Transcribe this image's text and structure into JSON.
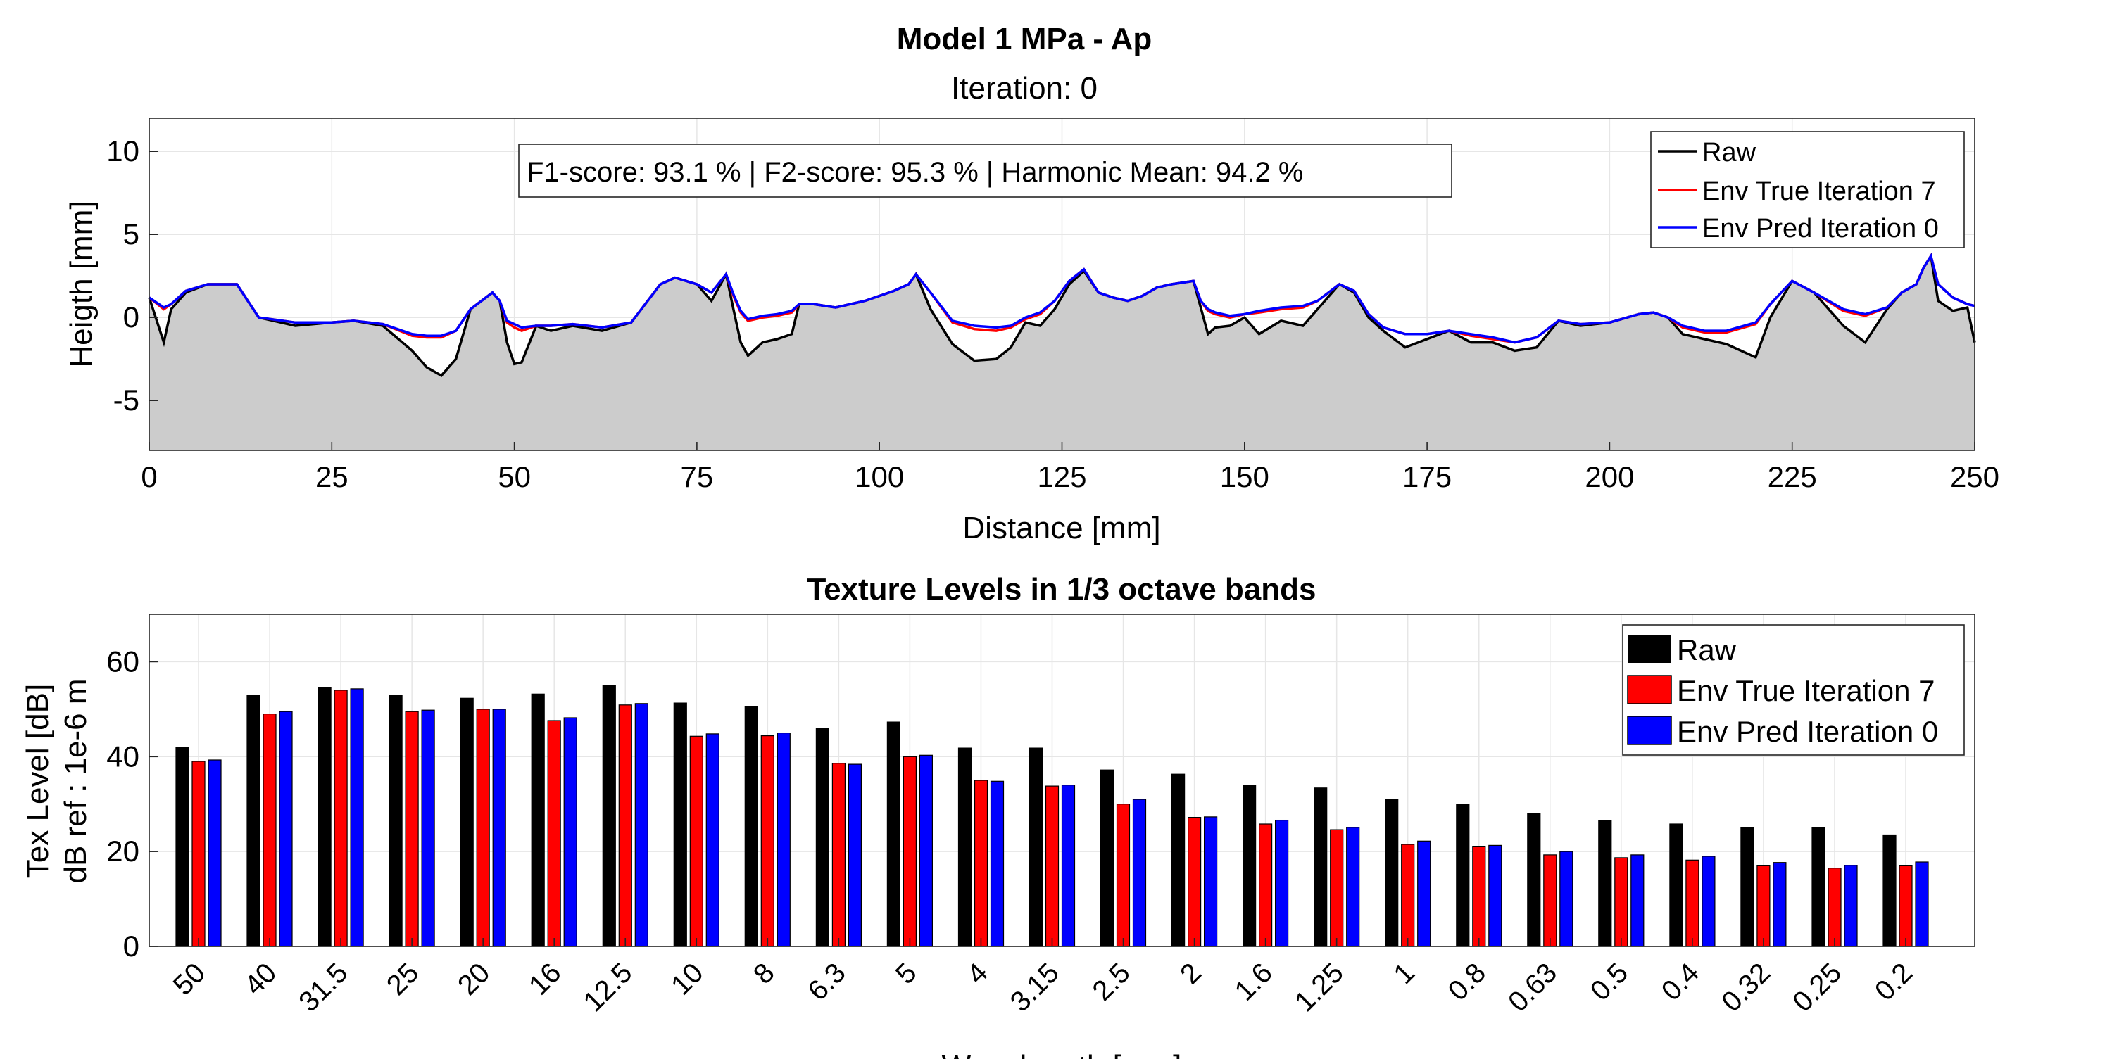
{
  "profile_chart": {
    "title": "Model 1 MPa - Ap",
    "subtitle": "Iteration: 0",
    "annotation": "F1-score: 93.1 % | F2-score: 95.3 % | Harmonic Mean: 94.2 %",
    "fill_color": "#cccccc",
    "legend": [
      {
        "label": "Raw",
        "color": "#000000"
      },
      {
        "label": "Env True Iteration 7",
        "color": "#ff0000"
      },
      {
        "label": "Env Pred Iteration 0",
        "color": "#0000ff"
      }
    ]
  },
  "spectrum_chart": {
    "title": "Texture Levels in 1/3 octave bands",
    "legend": [
      {
        "label": "Raw",
        "color": "#000000"
      },
      {
        "label": "Env True Iteration 7",
        "color": "#ff0000"
      },
      {
        "label": "Env Pred Iteration 0",
        "color": "#0000ff"
      }
    ]
  },
  "chart_data": [
    {
      "type": "line",
      "title": "Model 1 MPa - Ap",
      "subtitle": "Iteration: 0",
      "xlabel": "Distance [mm]",
      "ylabel": "Heigth [mm]",
      "xlim": [
        0,
        250
      ],
      "ylim": [
        -8,
        12
      ],
      "xticks": [
        0,
        25,
        50,
        75,
        100,
        125,
        150,
        175,
        200,
        225,
        250
      ],
      "yticks": [
        -5,
        0,
        5,
        10
      ],
      "grid": true,
      "legend_position": "top-right",
      "x": [
        0,
        2,
        3,
        5,
        8,
        12,
        15,
        20,
        25,
        28,
        32,
        36,
        38,
        40,
        42,
        44,
        47,
        48,
        49,
        50,
        51,
        53,
        55,
        58,
        62,
        66,
        70,
        72,
        75,
        77,
        79,
        80,
        81,
        82,
        84,
        86,
        88,
        89,
        91,
        94,
        98,
        102,
        104,
        105,
        107,
        110,
        113,
        116,
        118,
        120,
        122,
        124,
        126,
        128,
        130,
        132,
        134,
        136,
        138,
        140,
        143,
        144,
        145,
        146,
        148,
        150,
        152,
        155,
        158,
        160,
        163,
        165,
        167,
        169,
        172,
        175,
        178,
        181,
        184,
        187,
        190,
        193,
        196,
        200,
        204,
        206,
        208,
        210,
        213,
        216,
        220,
        222,
        225,
        228,
        232,
        235,
        238,
        240,
        242,
        243,
        244,
        245,
        247,
        249,
        250
      ],
      "series": [
        {
          "name": "Raw",
          "values": [
            1.2,
            -1.5,
            0.5,
            1.5,
            2.0,
            2.0,
            0.0,
            -0.5,
            -0.3,
            -0.2,
            -0.5,
            -2.0,
            -3.0,
            -3.5,
            -2.5,
            0.5,
            1.5,
            1.0,
            -1.5,
            -2.8,
            -2.7,
            -0.5,
            -0.8,
            -0.5,
            -0.8,
            -0.3,
            2.0,
            2.4,
            2.0,
            1.0,
            2.6,
            0.5,
            -1.5,
            -2.3,
            -1.5,
            -1.3,
            -1.0,
            0.8,
            0.8,
            0.6,
            1.0,
            1.6,
            2.0,
            2.6,
            0.5,
            -1.6,
            -2.6,
            -2.5,
            -1.8,
            -0.3,
            -0.5,
            0.5,
            2.0,
            2.8,
            1.5,
            1.2,
            1.0,
            1.3,
            1.8,
            2.0,
            2.2,
            0.6,
            -1.0,
            -0.6,
            -0.5,
            0.0,
            -1.0,
            -0.2,
            -0.5,
            0.5,
            2.0,
            1.5,
            0.0,
            -0.8,
            -1.8,
            -1.3,
            -0.8,
            -1.5,
            -1.5,
            -2.0,
            -1.8,
            -0.2,
            -0.5,
            -0.3,
            0.2,
            0.3,
            0.0,
            -1.0,
            -1.3,
            -1.6,
            -2.4,
            0.0,
            2.2,
            1.5,
            -0.5,
            -1.5,
            0.5,
            1.5,
            2.0,
            3.0,
            3.7,
            1.0,
            0.4,
            0.6,
            -1.5
          ]
        },
        {
          "name": "Env True Iteration 7",
          "values": [
            1.2,
            0.5,
            0.8,
            1.6,
            2.0,
            2.0,
            0.0,
            -0.3,
            -0.3,
            -0.2,
            -0.4,
            -1.1,
            -1.2,
            -1.2,
            -0.8,
            0.5,
            1.5,
            1.0,
            -0.3,
            -0.6,
            -0.8,
            -0.5,
            -0.5,
            -0.4,
            -0.6,
            -0.3,
            2.0,
            2.4,
            2.0,
            1.5,
            2.6,
            1.3,
            0.3,
            -0.2,
            0.0,
            0.1,
            0.3,
            0.8,
            0.8,
            0.6,
            1.0,
            1.6,
            2.0,
            2.6,
            1.5,
            -0.3,
            -0.7,
            -0.8,
            -0.6,
            -0.1,
            0.2,
            1.0,
            2.2,
            2.9,
            1.5,
            1.2,
            1.0,
            1.3,
            1.8,
            2.0,
            2.2,
            1.0,
            0.4,
            0.2,
            0.0,
            0.2,
            0.3,
            0.5,
            0.6,
            1.0,
            2.0,
            1.6,
            0.2,
            -0.6,
            -1.0,
            -1.0,
            -0.8,
            -1.1,
            -1.3,
            -1.5,
            -1.2,
            -0.2,
            -0.4,
            -0.3,
            0.2,
            0.3,
            0.0,
            -0.6,
            -0.9,
            -0.9,
            -0.4,
            0.8,
            2.2,
            1.5,
            0.4,
            0.1,
            0.6,
            1.5,
            2.0,
            3.0,
            3.7,
            2.0,
            1.2,
            0.8,
            0.7
          ]
        },
        {
          "name": "Env Pred Iteration 0",
          "values": [
            1.2,
            0.6,
            0.8,
            1.6,
            2.0,
            2.0,
            0.0,
            -0.3,
            -0.3,
            -0.2,
            -0.4,
            -1.0,
            -1.1,
            -1.1,
            -0.8,
            0.5,
            1.5,
            1.0,
            -0.2,
            -0.4,
            -0.6,
            -0.5,
            -0.5,
            -0.4,
            -0.6,
            -0.3,
            2.0,
            2.4,
            2.0,
            1.5,
            2.6,
            1.4,
            0.4,
            -0.1,
            0.1,
            0.2,
            0.4,
            0.8,
            0.8,
            0.6,
            1.0,
            1.6,
            2.0,
            2.6,
            1.5,
            -0.2,
            -0.5,
            -0.6,
            -0.5,
            0.0,
            0.3,
            1.0,
            2.2,
            2.9,
            1.5,
            1.2,
            1.0,
            1.3,
            1.8,
            2.0,
            2.2,
            1.0,
            0.5,
            0.3,
            0.1,
            0.2,
            0.4,
            0.6,
            0.7,
            1.0,
            2.0,
            1.6,
            0.2,
            -0.6,
            -1.0,
            -1.0,
            -0.8,
            -1.0,
            -1.2,
            -1.5,
            -1.2,
            -0.2,
            -0.4,
            -0.3,
            0.2,
            0.3,
            0.0,
            -0.5,
            -0.8,
            -0.8,
            -0.3,
            0.8,
            2.2,
            1.5,
            0.5,
            0.2,
            0.6,
            1.5,
            2.0,
            3.0,
            3.7,
            2.0,
            1.2,
            0.8,
            0.7
          ]
        }
      ]
    },
    {
      "type": "bar",
      "title": "Texture Levels in 1/3 octave bands",
      "xlabel": "Wavelength [mm]",
      "ylabel": "Tex Level [dB]",
      "ylabel2": "dB ref : 1e-6 m",
      "ylim": [
        0,
        70
      ],
      "yticks": [
        0,
        20,
        40,
        60
      ],
      "grid": true,
      "legend_position": "top-right",
      "categories": [
        "50",
        "40",
        "31.5",
        "25",
        "20",
        "16",
        "12.5",
        "10",
        "8",
        "6.3",
        "5",
        "4",
        "3.15",
        "2.5",
        "2",
        "1.6",
        "1.25",
        "1",
        "0.8",
        "0.63",
        "0.5",
        "0.4",
        "0.32",
        "0.25",
        "0.2"
      ],
      "series": [
        {
          "name": "Raw",
          "values": [
            42,
            53,
            54.5,
            53,
            52.3,
            53.2,
            55,
            51.3,
            50.6,
            46,
            47.3,
            41.8,
            41.8,
            37.2,
            36.3,
            34,
            33.4,
            30.9,
            30,
            28,
            26.5,
            25.8,
            25,
            25,
            23.5
          ]
        },
        {
          "name": "Env True Iteration 7",
          "values": [
            39,
            49,
            54,
            49.5,
            50,
            47.6,
            50.9,
            44.3,
            44.4,
            38.6,
            40,
            35,
            33.8,
            30,
            27.2,
            25.8,
            24.6,
            21.5,
            21,
            19.3,
            18.7,
            18.2,
            17,
            16.5,
            17
          ]
        },
        {
          "name": "Env Pred Iteration 0",
          "values": [
            39.3,
            49.5,
            54.3,
            49.8,
            50,
            48.2,
            51.2,
            44.8,
            45,
            38.4,
            40.3,
            34.8,
            34,
            31,
            27.3,
            26.6,
            25.1,
            22.2,
            21.3,
            20,
            19.3,
            19,
            17.7,
            17.1,
            17.8
          ]
        }
      ]
    }
  ]
}
